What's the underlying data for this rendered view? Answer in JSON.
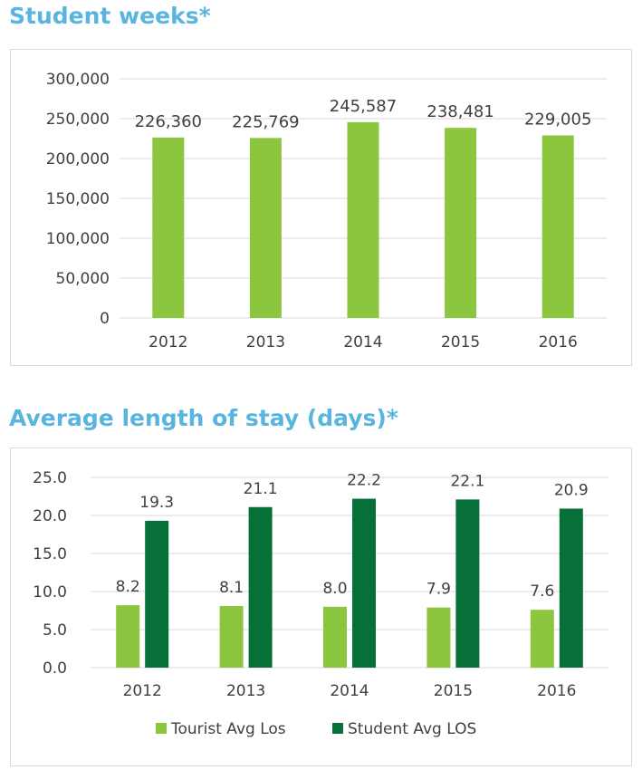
{
  "titles": {
    "student_weeks": "Student weeks*",
    "avg_stay": "Average length of stay (days)*"
  },
  "colors": {
    "title": "#5ab4e0",
    "light_green": "#8cc63f",
    "dark_green": "#077038",
    "grid": "#d9d9d9",
    "text": "#404040"
  },
  "chart_data": [
    {
      "type": "bar",
      "title": "Student weeks*",
      "categories": [
        "2012",
        "2013",
        "2014",
        "2015",
        "2016"
      ],
      "values": [
        226360,
        225769,
        245587,
        238481,
        229005
      ],
      "data_labels": [
        "226,360",
        "225,769",
        "245,587",
        "238,481",
        "229,005"
      ],
      "y_ticks": [
        "0",
        "50,000",
        "100,000",
        "150,000",
        "200,000",
        "250,000",
        "300,000"
      ],
      "ylim": [
        0,
        300000
      ],
      "grid": true,
      "legend": "none"
    },
    {
      "type": "bar",
      "title": "Average length of stay (days)*",
      "categories": [
        "2012",
        "2013",
        "2014",
        "2015",
        "2016"
      ],
      "series": [
        {
          "name": "Tourist Avg Los",
          "values": [
            8.2,
            8.1,
            8.0,
            7.9,
            7.6
          ],
          "data_labels": [
            "8.2",
            "8.1",
            "8.0",
            "7.9",
            "7.6"
          ]
        },
        {
          "name": "Student Avg LOS",
          "values": [
            19.3,
            21.1,
            22.2,
            22.1,
            20.9
          ],
          "data_labels": [
            "19.3",
            "21.1",
            "22.2",
            "22.1",
            "20.9"
          ]
        }
      ],
      "y_ticks": [
        "0.0",
        "5.0",
        "10.0",
        "15.0",
        "20.0",
        "25.0"
      ],
      "ylim": [
        0,
        25
      ],
      "grid": true,
      "legend": "bottom"
    }
  ]
}
